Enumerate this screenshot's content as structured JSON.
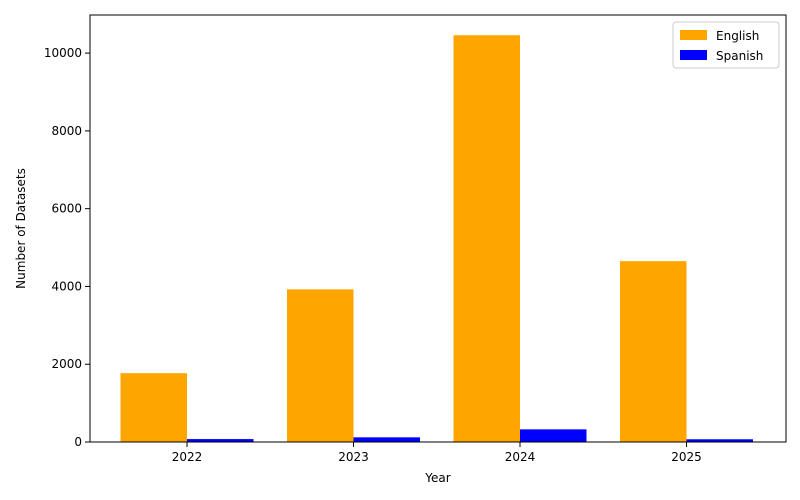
{
  "chart_data": {
    "type": "bar",
    "categories": [
      "2022",
      "2023",
      "2024",
      "2025"
    ],
    "series": [
      {
        "name": "English",
        "color": "#ffa500",
        "values": [
          1770,
          3925,
          10460,
          4650
        ]
      },
      {
        "name": "Spanish",
        "color": "#0000ff",
        "values": [
          75,
          120,
          325,
          70
        ]
      }
    ],
    "xlabel": "Year",
    "ylabel": "Number of Datasets",
    "ylim": [
      0,
      10980
    ],
    "yticks": [
      0,
      2000,
      4000,
      6000,
      8000,
      10000
    ],
    "legend_position": "top-right",
    "grid": false
  }
}
